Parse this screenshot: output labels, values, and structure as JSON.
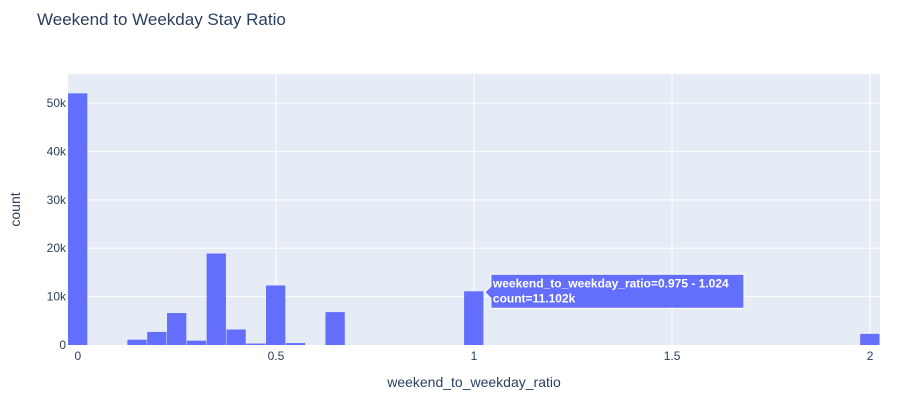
{
  "chart_data": {
    "type": "bar",
    "title": "Weekend to Weekday Stay Ratio",
    "xlabel": "weekend_to_weekday_ratio",
    "ylabel": "count",
    "xlim": [
      -0.025,
      2.025
    ],
    "ylim": [
      0,
      56000
    ],
    "x_ticks": [
      {
        "value": 0,
        "label": "0"
      },
      {
        "value": 0.5,
        "label": "0.5"
      },
      {
        "value": 1,
        "label": "1"
      },
      {
        "value": 1.5,
        "label": "1.5"
      },
      {
        "value": 2,
        "label": "2"
      }
    ],
    "y_ticks": [
      {
        "value": 0,
        "label": "0"
      },
      {
        "value": 10000,
        "label": "10k"
      },
      {
        "value": 20000,
        "label": "20k"
      },
      {
        "value": 30000,
        "label": "30k"
      },
      {
        "value": 40000,
        "label": "40k"
      },
      {
        "value": 50000,
        "label": "50k"
      }
    ],
    "bin_width": 0.05,
    "bins": [
      {
        "x0": -0.025,
        "x1": 0.025,
        "count": 52000
      },
      {
        "x0": 0.125,
        "x1": 0.175,
        "count": 1100
      },
      {
        "x0": 0.175,
        "x1": 0.225,
        "count": 2700
      },
      {
        "x0": 0.225,
        "x1": 0.275,
        "count": 6600
      },
      {
        "x0": 0.275,
        "x1": 0.325,
        "count": 900
      },
      {
        "x0": 0.325,
        "x1": 0.375,
        "count": 18900
      },
      {
        "x0": 0.375,
        "x1": 0.425,
        "count": 3200
      },
      {
        "x0": 0.425,
        "x1": 0.475,
        "count": 300
      },
      {
        "x0": 0.475,
        "x1": 0.525,
        "count": 12300
      },
      {
        "x0": 0.525,
        "x1": 0.575,
        "count": 400
      },
      {
        "x0": 0.625,
        "x1": 0.675,
        "count": 6800
      },
      {
        "x0": 0.975,
        "x1": 1.025,
        "count": 11102
      },
      {
        "x0": 1.975,
        "x1": 2.025,
        "count": 2300
      }
    ],
    "bar_color": "#636efa",
    "plot_bg": "#e5ecf6",
    "grid": true,
    "hover": {
      "line1": "weekend_to_weekday_ratio=0.975 - 1.024",
      "line2": "count=11.102k"
    }
  }
}
